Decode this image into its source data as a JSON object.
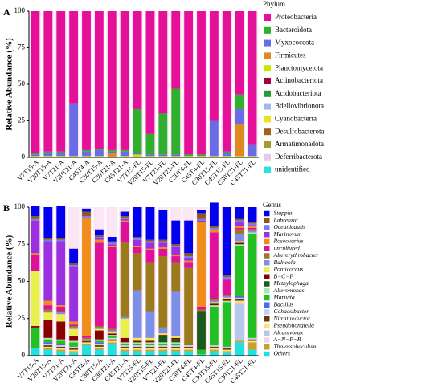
{
  "chart_data": [
    {
      "type": "stacked-bar",
      "panel": "A",
      "ylabel": "Relative Abundance (%)",
      "legend_title": "Phylum",
      "legend_italic": false,
      "categories": [
        "V7T15-A",
        "V20T15-A",
        "V7T21-A",
        "V20T21-A",
        "C45T4-A",
        "C30T15-A",
        "C30T21-A",
        "C45T21-A",
        "V7T15-FL",
        "V20T15-FL",
        "V7T21-FL",
        "V20T21-FL",
        "C30T4-FL",
        "C45T4-FL",
        "C30T15-FL",
        "C45T15-FL",
        "C30T21-FL",
        "C45T21-FL"
      ],
      "ylim": [
        0,
        100
      ],
      "yticks": [
        0,
        25,
        50,
        75,
        100
      ],
      "series": [
        {
          "name": "Proteobacteria",
          "color": "#e5109a",
          "values": [
            97,
            96,
            96,
            63,
            95,
            94,
            95,
            95,
            67,
            84,
            70,
            53,
            98,
            98,
            75,
            96,
            57,
            91
          ]
        },
        {
          "name": "Bacteroidota",
          "color": "#2fae2f",
          "values": [
            1,
            1,
            1,
            0,
            1,
            1,
            1,
            1,
            30,
            14,
            28,
            45,
            1,
            1,
            0,
            1,
            10,
            0
          ]
        },
        {
          "name": "Myxococcota",
          "color": "#6b6be8",
          "values": [
            1,
            2,
            2,
            36,
            3,
            4,
            1,
            3,
            1,
            1,
            1,
            1,
            0,
            0,
            24,
            2,
            10,
            8
          ]
        },
        {
          "name": "Firmicutes",
          "color": "#e0891e",
          "values": [
            0,
            0,
            0,
            0,
            0,
            0,
            3,
            0,
            0,
            0,
            0,
            0,
            0,
            0,
            0,
            0,
            22,
            0
          ]
        },
        {
          "name": "Planctomycetota",
          "color": "#c6e600",
          "values": [
            1,
            1,
            1,
            1,
            1,
            1,
            0,
            1,
            2,
            1,
            1,
            1,
            1,
            1,
            1,
            1,
            1,
            1
          ]
        },
        {
          "name": "Actinobacteriota",
          "color": "#a6003c",
          "values": [
            0,
            0,
            0,
            0,
            0,
            0,
            0,
            0,
            0,
            0,
            0,
            0,
            0,
            0,
            0,
            0,
            0,
            0
          ]
        },
        {
          "name": "Acidobacteriota",
          "color": "#249a3c",
          "values": [
            0,
            0,
            0,
            0,
            0,
            0,
            0,
            0,
            0,
            0,
            0,
            0,
            0,
            0,
            0,
            0,
            0,
            0
          ]
        },
        {
          "name": "Bdellovibrionota",
          "color": "#a3b5f0",
          "values": [
            0,
            0,
            0,
            0,
            0,
            0,
            0,
            0,
            0,
            0,
            0,
            0,
            0,
            0,
            0,
            0,
            0,
            0
          ]
        },
        {
          "name": "Cyanobacteria",
          "color": "#f0e020",
          "values": [
            0,
            0,
            0,
            0,
            0,
            0,
            0,
            0,
            0,
            0,
            0,
            0,
            0,
            0,
            0,
            0,
            0,
            0
          ]
        },
        {
          "name": "Desulfobacterota",
          "color": "#a0621b",
          "values": [
            0,
            0,
            0,
            0,
            0,
            0,
            0,
            0,
            0,
            0,
            0,
            0,
            0,
            0,
            0,
            0,
            0,
            0
          ]
        },
        {
          "name": "Armatimonadota",
          "color": "#9e9e2e",
          "values": [
            0,
            0,
            0,
            0,
            0,
            0,
            0,
            0,
            0,
            0,
            0,
            0,
            0,
            0,
            0,
            0,
            0,
            0
          ]
        },
        {
          "name": "Deferribacterota",
          "color": "#e8c8e8",
          "values": [
            0,
            0,
            0,
            0,
            0,
            0,
            0,
            0,
            0,
            0,
            0,
            0,
            0,
            0,
            0,
            0,
            0,
            0
          ]
        },
        {
          "name": "unidentified",
          "color": "#2fe0e0",
          "values": [
            0,
            0,
            0,
            0,
            0,
            0,
            0,
            0,
            0,
            0,
            0,
            0,
            0,
            0,
            0,
            0,
            0,
            0
          ]
        }
      ]
    },
    {
      "type": "stacked-bar",
      "panel": "B",
      "ylabel": "Relative Abundance (%)",
      "legend_title": "Genus",
      "legend_italic": true,
      "categories": [
        "V7T15-A",
        "V20T15-A",
        "V7T21-A",
        "V20T21-A",
        "C45T4-A",
        "C30T15-A",
        "C30T21-A",
        "C45T21-A",
        "V7T15-FL",
        "V20T15-FL",
        "V7T21-FL",
        "V20T21-FL",
        "C30T4-FL",
        "C45T4-FL",
        "C30T15-FL",
        "C45T15-FL",
        "C30T21-FL",
        "C45T21-FL"
      ],
      "ylim": [
        0,
        100
      ],
      "yticks": [
        0,
        25,
        50,
        75,
        100
      ],
      "series": [
        {
          "name": "Stappia",
          "color": "#0000ee",
          "values": [
            7,
            21,
            22,
            10,
            2,
            4,
            3,
            3,
            20,
            22,
            20,
            16,
            22,
            2,
            16,
            46,
            8,
            10
          ]
        },
        {
          "name": "Labrenzia",
          "color": "#8b5a1a",
          "values": [
            2,
            1,
            1,
            1,
            3,
            1,
            1,
            1,
            1,
            1,
            1,
            1,
            2,
            4,
            1,
            1,
            1,
            1
          ]
        },
        {
          "name": "Oceanicaulis",
          "color": "#7a7af0",
          "values": [
            1,
            1,
            1,
            1,
            1,
            1,
            1,
            1,
            1,
            1,
            1,
            1,
            1,
            1,
            1,
            1,
            1,
            1
          ]
        },
        {
          "name": "Marinovum",
          "color": "#9b30e0",
          "values": [
            22,
            40,
            43,
            37,
            0,
            1,
            1,
            1,
            4,
            4,
            3,
            5,
            2,
            1,
            0,
            1,
            3,
            1
          ]
        },
        {
          "name": "Roseovarius",
          "color": "#f08c1a",
          "values": [
            1,
            3,
            1,
            2,
            80,
            2,
            1,
            1,
            1,
            1,
            1,
            1,
            1,
            57,
            2,
            0,
            1,
            1
          ]
        },
        {
          "name": "uncultured",
          "color": "#e0109a",
          "values": [
            11,
            3,
            3,
            1,
            1,
            56,
            55,
            14,
            4,
            8,
            5,
            4,
            4,
            2,
            45,
            10,
            1,
            1
          ]
        },
        {
          "name": "Altererythrobacter",
          "color": "#9a7a1a",
          "values": [
            0,
            1,
            1,
            1,
            1,
            1,
            1,
            50,
            25,
            33,
            48,
            20,
            52,
            1,
            1,
            1,
            3,
            1
          ]
        },
        {
          "name": "Balneola",
          "color": "#7b8fe8",
          "values": [
            0,
            1,
            1,
            1,
            0,
            1,
            1,
            1,
            32,
            18,
            4,
            30,
            0,
            0,
            1,
            1,
            5,
            1
          ]
        },
        {
          "name": "Ponticoccus",
          "color": "#e8f04a",
          "values": [
            37,
            5,
            5,
            5,
            0,
            1,
            1,
            13,
            2,
            2,
            1,
            1,
            0,
            0,
            1,
            1,
            1,
            0
          ]
        },
        {
          "name": "B−C−P",
          "color": "#8b0000",
          "values": [
            1,
            12,
            12,
            3,
            0,
            6,
            1,
            3,
            1,
            1,
            1,
            1,
            0,
            0,
            1,
            1,
            1,
            0
          ]
        },
        {
          "name": "Methylophaga",
          "color": "#1a5a1a",
          "values": [
            0,
            0,
            0,
            0,
            0,
            0,
            0,
            0,
            0,
            0,
            4,
            2,
            0,
            26,
            0,
            0,
            0,
            0
          ]
        },
        {
          "name": "Alteromonas",
          "color": "#a8e8a8",
          "values": [
            0,
            1,
            1,
            1,
            0,
            1,
            1,
            1,
            1,
            1,
            1,
            1,
            0,
            0,
            1,
            1,
            1,
            1
          ]
        },
        {
          "name": "Marivita",
          "color": "#22c022",
          "values": [
            14,
            2,
            2,
            3,
            0,
            1,
            1,
            1,
            1,
            1,
            1,
            1,
            0,
            3,
            26,
            30,
            34,
            70
          ]
        },
        {
          "name": "Bacillus",
          "color": "#4a6af0",
          "values": [
            0,
            1,
            1,
            0,
            0,
            1,
            0,
            0,
            0,
            0,
            0,
            0,
            0,
            0,
            0,
            0,
            1,
            0
          ]
        },
        {
          "name": "Cohaesibacter",
          "color": "#c0d0f0",
          "values": [
            0,
            1,
            1,
            1,
            1,
            1,
            1,
            1,
            1,
            1,
            1,
            1,
            1,
            0,
            1,
            1,
            1,
            1
          ]
        },
        {
          "name": "Nitratireductor",
          "color": "#6a3a0a",
          "values": [
            0,
            1,
            1,
            1,
            1,
            1,
            1,
            1,
            1,
            1,
            1,
            1,
            1,
            0,
            1,
            1,
            1,
            1
          ]
        },
        {
          "name": "Pseudohongiella",
          "color": "#ffe070",
          "values": [
            0,
            1,
            1,
            1,
            1,
            1,
            1,
            1,
            1,
            1,
            1,
            1,
            1,
            0,
            1,
            1,
            2,
            1
          ]
        },
        {
          "name": "Alcanivorax",
          "color": "#b8c8e8",
          "values": [
            0,
            0,
            0,
            0,
            0,
            0,
            0,
            0,
            0,
            0,
            0,
            0,
            0,
            0,
            0,
            0,
            25,
            0
          ]
        },
        {
          "name": "A−N−P−R",
          "color": "#e8d8e8",
          "values": [
            0,
            0,
            0,
            0,
            0,
            0,
            0,
            0,
            0,
            0,
            0,
            0,
            0,
            0,
            0,
            0,
            0,
            0
          ]
        },
        {
          "name": "Thalassobaculum",
          "color": "#c8a030",
          "values": [
            0,
            1,
            1,
            1,
            1,
            1,
            1,
            1,
            1,
            1,
            1,
            1,
            1,
            0,
            1,
            1,
            1,
            5
          ]
        },
        {
          "name": "Others",
          "color": "#20e0e0",
          "values": [
            5,
            4,
            3,
            2,
            7,
            4,
            8,
            3,
            3,
            3,
            3,
            3,
            3,
            1,
            3,
            2,
            9,
            4
          ]
        }
      ]
    }
  ]
}
